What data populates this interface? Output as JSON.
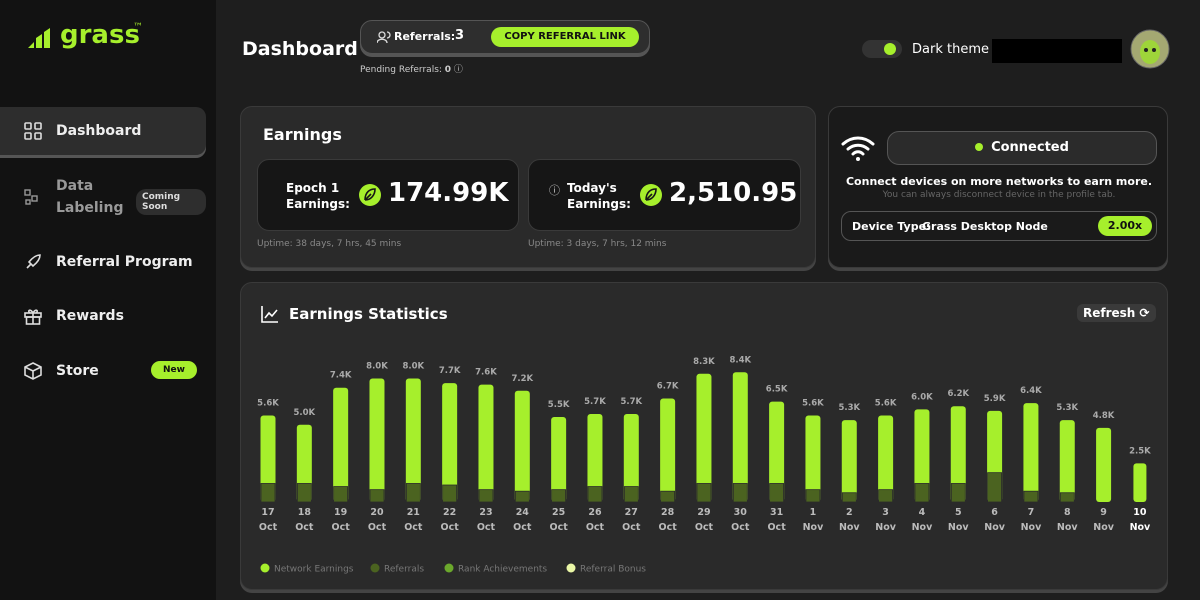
{
  "sidebar": {
    "logo": "grass",
    "trademark": "™",
    "nav": [
      {
        "label": "Dashboard"
      },
      {
        "label": "Data Labeling",
        "badge": "Coming Soon"
      },
      {
        "label": "Referral Program"
      },
      {
        "label": "Rewards"
      },
      {
        "label": "Store",
        "badge": "New"
      }
    ]
  },
  "header": {
    "title": "Dashboard",
    "referrals_label": "Referrals:",
    "referrals_count": 3,
    "copy_button": "COPY REFERRAL LINK",
    "pending_label": "Pending Referrals:",
    "pending_count": 0,
    "theme_label": "Dark theme"
  },
  "earnings": {
    "title": "Earnings",
    "cards": [
      {
        "label": "Epoch 1 Earnings:",
        "value": "174.99K",
        "uptime": "Uptime: 38 days, 7 hrs, 45 mins"
      },
      {
        "label": "Today's Earnings:",
        "value": "2,510.95",
        "uptime": "Uptime: 3 days, 7 hrs, 12 mins"
      }
    ]
  },
  "connection": {
    "status": "Connected",
    "message": "Connect devices on more networks to earn more.",
    "note": "You can always disconnect device in the profile tab.",
    "device_label": "Device Type:",
    "device_name": "Grass Desktop Node",
    "multiplier": "2.00x"
  },
  "chart_data": {
    "type": "bar",
    "title": "Earnings Statistics",
    "refresh": "Refresh",
    "categories": [
      [
        "17",
        "Oct"
      ],
      [
        "18",
        "Oct"
      ],
      [
        "19",
        "Oct"
      ],
      [
        "20",
        "Oct"
      ],
      [
        "21",
        "Oct"
      ],
      [
        "22",
        "Oct"
      ],
      [
        "23",
        "Oct"
      ],
      [
        "24",
        "Oct"
      ],
      [
        "25",
        "Oct"
      ],
      [
        "26",
        "Oct"
      ],
      [
        "27",
        "Oct"
      ],
      [
        "28",
        "Oct"
      ],
      [
        "29",
        "Oct"
      ],
      [
        "30",
        "Oct"
      ],
      [
        "31",
        "Oct"
      ],
      [
        "1",
        "Nov"
      ],
      [
        "2",
        "Nov"
      ],
      [
        "3",
        "Nov"
      ],
      [
        "4",
        "Nov"
      ],
      [
        "5",
        "Nov"
      ],
      [
        "6",
        "Nov"
      ],
      [
        "7",
        "Nov"
      ],
      [
        "8",
        "Nov"
      ],
      [
        "9",
        "Nov"
      ],
      [
        "10",
        "Nov"
      ]
    ],
    "ylim": [
      0,
      9000
    ],
    "series": [
      {
        "name": "Network Earnings",
        "color": "#a6ef2c",
        "values": [
          5600,
          5000,
          7400,
          8000,
          8000,
          7700,
          7600,
          7200,
          5500,
          5700,
          5700,
          6700,
          8300,
          8400,
          6500,
          5600,
          5300,
          5600,
          6000,
          6200,
          5900,
          6400,
          5300,
          4800,
          2500
        ],
        "value_labels": [
          "5.6K",
          "5.0K",
          "7.4K",
          "8.0K",
          "8.0K",
          "7.7K",
          "7.6K",
          "7.2K",
          "5.5K",
          "5.7K",
          "5.7K",
          "6.7K",
          "8.3K",
          "8.4K",
          "6.5K",
          "5.6K",
          "5.3K",
          "5.6K",
          "6.0K",
          "6.2K",
          "5.9K",
          "6.4K",
          "5.3K",
          "4.8K",
          "2.5K"
        ]
      },
      {
        "name": "Referrals",
        "color": "#4b6320",
        "values": [
          1200,
          1200,
          1000,
          800,
          1200,
          1100,
          800,
          700,
          800,
          1000,
          1000,
          700,
          1200,
          1200,
          1200,
          800,
          600,
          800,
          1200,
          1200,
          1900,
          700,
          600,
          null,
          null
        ]
      },
      {
        "name": "Rank Achievements",
        "color": "#6ba82c",
        "values": [
          null,
          null,
          null,
          null,
          null,
          null,
          null,
          null,
          null,
          null,
          null,
          null,
          null,
          null,
          null,
          null,
          null,
          null,
          null,
          null,
          null,
          null,
          null,
          null,
          null
        ]
      },
      {
        "name": "Referral Bonus",
        "color": "#eaf7a6",
        "values": [
          null,
          null,
          null,
          null,
          null,
          null,
          null,
          null,
          null,
          null,
          null,
          null,
          null,
          null,
          null,
          null,
          null,
          null,
          null,
          null,
          null,
          null,
          null,
          null,
          null
        ]
      }
    ]
  }
}
